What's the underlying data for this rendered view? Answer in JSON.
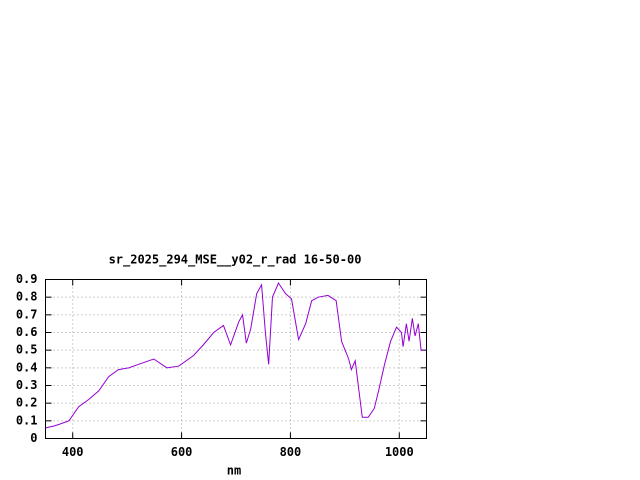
{
  "chart_data": {
    "type": "line",
    "title": "sr_2025_294_MSE__y02_r_rad 16-50-00",
    "x_label": "nm",
    "x": [
      350,
      365,
      375,
      393,
      411,
      429,
      448,
      466,
      484,
      503,
      521,
      549,
      573,
      595,
      622,
      640,
      659,
      677,
      690,
      705,
      712,
      719,
      727,
      738,
      747,
      754,
      760,
      767,
      778,
      791,
      802,
      815,
      828,
      839,
      851,
      869,
      884,
      894,
      907,
      912,
      919,
      932,
      943,
      954,
      962,
      973,
      984,
      995,
      1004,
      1007,
      1013,
      1018,
      1024,
      1029,
      1035,
      1040,
      1046
    ],
    "series": [
      {
        "color": "#9400d3",
        "values": [
          0.06,
          0.07,
          0.08,
          0.1,
          0.18,
          0.22,
          0.27,
          0.35,
          0.39,
          0.4,
          0.42,
          0.45,
          0.4,
          0.41,
          0.47,
          0.53,
          0.6,
          0.64,
          0.53,
          0.66,
          0.7,
          0.54,
          0.62,
          0.82,
          0.87,
          0.6,
          0.42,
          0.8,
          0.88,
          0.82,
          0.79,
          0.56,
          0.65,
          0.78,
          0.8,
          0.81,
          0.78,
          0.55,
          0.45,
          0.39,
          0.44,
          0.12,
          0.12,
          0.17,
          0.27,
          0.42,
          0.55,
          0.63,
          0.6,
          0.52,
          0.65,
          0.55,
          0.68,
          0.58,
          0.65,
          0.5,
          0.5
        ]
      }
    ],
    "xlim": [
      350,
      1050
    ],
    "ylim": [
      0,
      0.9
    ],
    "xticks": [
      400,
      600,
      800,
      1000
    ],
    "yticks": [
      0,
      0.1,
      0.2,
      0.3,
      0.4,
      0.5,
      0.6,
      0.7,
      0.8,
      0.9
    ],
    "grid": true
  }
}
